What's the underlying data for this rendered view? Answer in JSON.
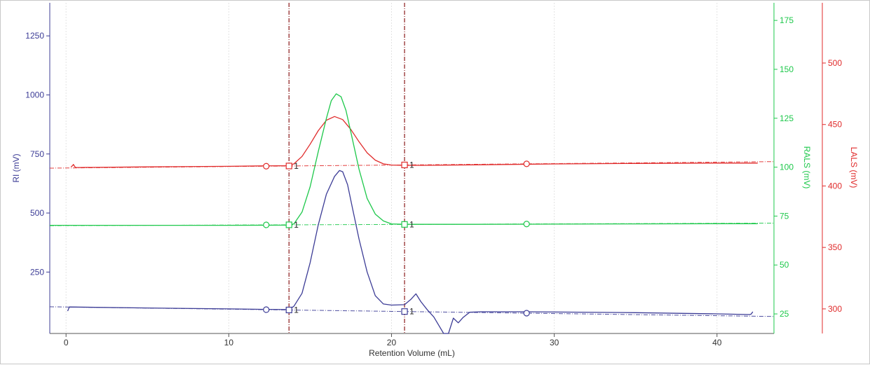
{
  "chart_data": {
    "type": "line",
    "xlabel": "Retention Volume (mL)",
    "xlim": [
      -1,
      43.5
    ],
    "x_ticks": [
      0,
      10,
      20,
      30,
      40
    ],
    "axes": {
      "ri": {
        "label": "RI (mV)",
        "color": "#3c3c96",
        "ylim": [
          -10,
          1390
        ],
        "ticks": [
          250,
          500,
          750,
          1000,
          1250
        ]
      },
      "rals": {
        "label": "RALS (mV)",
        "color": "#1ec84b",
        "ylim": [
          15,
          184
        ],
        "ticks": [
          25,
          50,
          75,
          100,
          125,
          150,
          175
        ]
      },
      "lals": {
        "label": "LALS (mV)",
        "color": "#e02b2b",
        "ylim": [
          280,
          549
        ],
        "ticks": [
          300,
          350,
          400,
          450,
          500
        ]
      }
    },
    "peak_limits_x": [
      13.7,
      20.8
    ],
    "limit_line_color": "#8b1a1a",
    "peak_label": "1",
    "series": [
      {
        "key": "lals",
        "axis": "lals",
        "color": "#e02b2b",
        "x": [
          0.3,
          0.4,
          0.45,
          0.5,
          0.55,
          0.6,
          0.8,
          5,
          10,
          12,
          13,
          13.7,
          14,
          14.5,
          15,
          15.5,
          16,
          16.5,
          17,
          17.5,
          18,
          18.5,
          19,
          19.5,
          20,
          20.8,
          22,
          25,
          30,
          35,
          40,
          42.5
        ],
        "y": [
          415.5,
          416.5,
          417.5,
          416.5,
          415.5,
          415,
          415,
          415.5,
          416,
          416.3,
          416.4,
          416.5,
          418,
          424,
          434,
          445,
          453.5,
          456.5,
          454,
          446,
          436,
          427,
          421,
          418,
          417,
          416.8,
          416.8,
          417.2,
          417.9,
          418.3,
          418.6,
          418.6
        ],
        "baseline": {
          "x": [
            -1,
            43.5
          ],
          "y": [
            414.5,
            419.8
          ]
        },
        "circles_x": [
          12.3,
          28.3
        ],
        "squares_x": [
          13.7,
          20.8
        ]
      },
      {
        "key": "rals",
        "axis": "rals",
        "color": "#1ec84b",
        "x": [
          -1,
          5,
          10,
          13,
          13.7,
          14,
          14.5,
          15,
          15.5,
          16,
          16.3,
          16.6,
          16.9,
          17.2,
          17.5,
          18,
          18.5,
          19,
          19.5,
          20,
          20.8,
          25,
          30,
          35,
          40,
          42.5
        ],
        "y": [
          70.3,
          70.3,
          70.3,
          70.35,
          70.4,
          71,
          77,
          90,
          108,
          125,
          134,
          137.5,
          136,
          129,
          118,
          99,
          84,
          76,
          72.5,
          71,
          70.8,
          70.8,
          70.9,
          71,
          71.1,
          71.1
        ],
        "baseline": {
          "x": [
            -1,
            43.5
          ],
          "y": [
            70.1,
            71.4
          ]
        },
        "circles_x": [
          12.3,
          28.3
        ],
        "squares_x": [
          13.7,
          20.8
        ]
      },
      {
        "key": "ri",
        "axis": "ri",
        "color": "#3c3c96",
        "x": [
          0.1,
          0.2,
          5,
          10,
          12.3,
          13.7,
          14,
          14.5,
          15,
          15.5,
          16,
          16.5,
          16.8,
          17,
          17.3,
          17.6,
          18,
          18.5,
          19,
          19.5,
          20,
          20.8,
          21.2,
          21.5,
          21.8,
          22.2,
          22.6,
          22.9,
          23.2,
          23.5,
          23.8,
          24.1,
          24.4,
          24.8,
          25.5,
          28.3,
          35,
          40,
          42,
          42.1,
          42.2
        ],
        "y": [
          85,
          102,
          98,
          94,
          92,
          91,
          105,
          160,
          290,
          450,
          580,
          655,
          680,
          675,
          620,
          520,
          390,
          250,
          150,
          115,
          110,
          112,
          135,
          158,
          125,
          90,
          60,
          25,
          -10,
          -10,
          55,
          35,
          58,
          80,
          82,
          82,
          78,
          73,
          70,
          72,
          82
        ],
        "baseline": {
          "x": [
            -1,
            43.5
          ],
          "y": [
            103,
            62
          ]
        },
        "circles_x": [
          12.3,
          28.3
        ],
        "squares_x": [
          13.7,
          20.8
        ]
      }
    ]
  }
}
